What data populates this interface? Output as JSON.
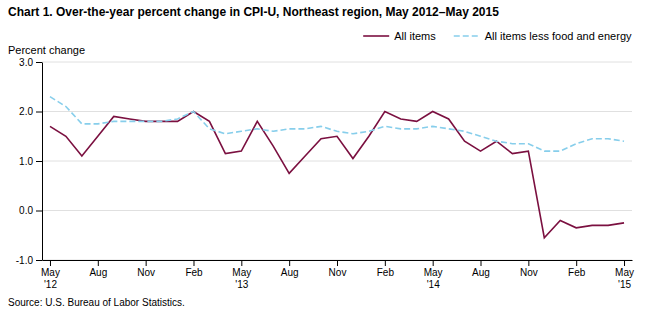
{
  "chart_data": {
    "type": "line",
    "title": "Chart 1. Over-the-year percent change in CPI-U, Northeast region, May 2012–May 2015",
    "y_label": "Percent change",
    "source": "Source: U.S. Bureau of Labor Statistics.",
    "categories": [
      "May\n'12",
      null,
      null,
      "Aug",
      null,
      null,
      "Nov",
      null,
      null,
      "Feb",
      null,
      null,
      "May\n'13",
      null,
      null,
      "Aug",
      null,
      null,
      "Nov",
      null,
      null,
      "Feb",
      null,
      null,
      "May\n'14",
      null,
      null,
      "Aug",
      null,
      null,
      "Nov",
      null,
      null,
      "Feb",
      null,
      null,
      "May\n'15"
    ],
    "series": [
      {
        "name": "All items",
        "color": "#7b1040",
        "line_style": "solid",
        "values": [
          1.7,
          1.5,
          1.1,
          1.5,
          1.9,
          1.85,
          1.8,
          1.8,
          1.8,
          2.0,
          1.8,
          1.15,
          1.2,
          1.8,
          1.3,
          0.75,
          1.1,
          1.45,
          1.5,
          1.05,
          1.5,
          2.0,
          1.85,
          1.8,
          2.0,
          1.85,
          1.4,
          1.2,
          1.4,
          1.15,
          1.2,
          -0.55,
          -0.2,
          -0.35,
          -0.3,
          -0.3,
          -0.25
        ]
      },
      {
        "name": "All items less food and energy",
        "color": "#87ceeb",
        "line_style": "dashed",
        "values": [
          2.3,
          2.1,
          1.75,
          1.75,
          1.8,
          1.8,
          1.8,
          1.8,
          1.85,
          2.0,
          1.65,
          1.55,
          1.6,
          1.65,
          1.6,
          1.65,
          1.65,
          1.7,
          1.6,
          1.55,
          1.6,
          1.7,
          1.65,
          1.65,
          1.7,
          1.65,
          1.6,
          1.5,
          1.4,
          1.35,
          1.35,
          1.2,
          1.2,
          1.35,
          1.45,
          1.45,
          1.4
        ]
      }
    ],
    "ylim": [
      -1.0,
      3.0
    ],
    "yticks": [
      {
        "value": -1.0,
        "label": "-1.0"
      },
      {
        "value": 0.0,
        "label": "0.0"
      },
      {
        "value": 1.0,
        "label": "1.0"
      },
      {
        "value": 2.0,
        "label": "2.0"
      },
      {
        "value": 3.0,
        "label": "3.0"
      }
    ],
    "grid": true,
    "legend": "top-right"
  }
}
